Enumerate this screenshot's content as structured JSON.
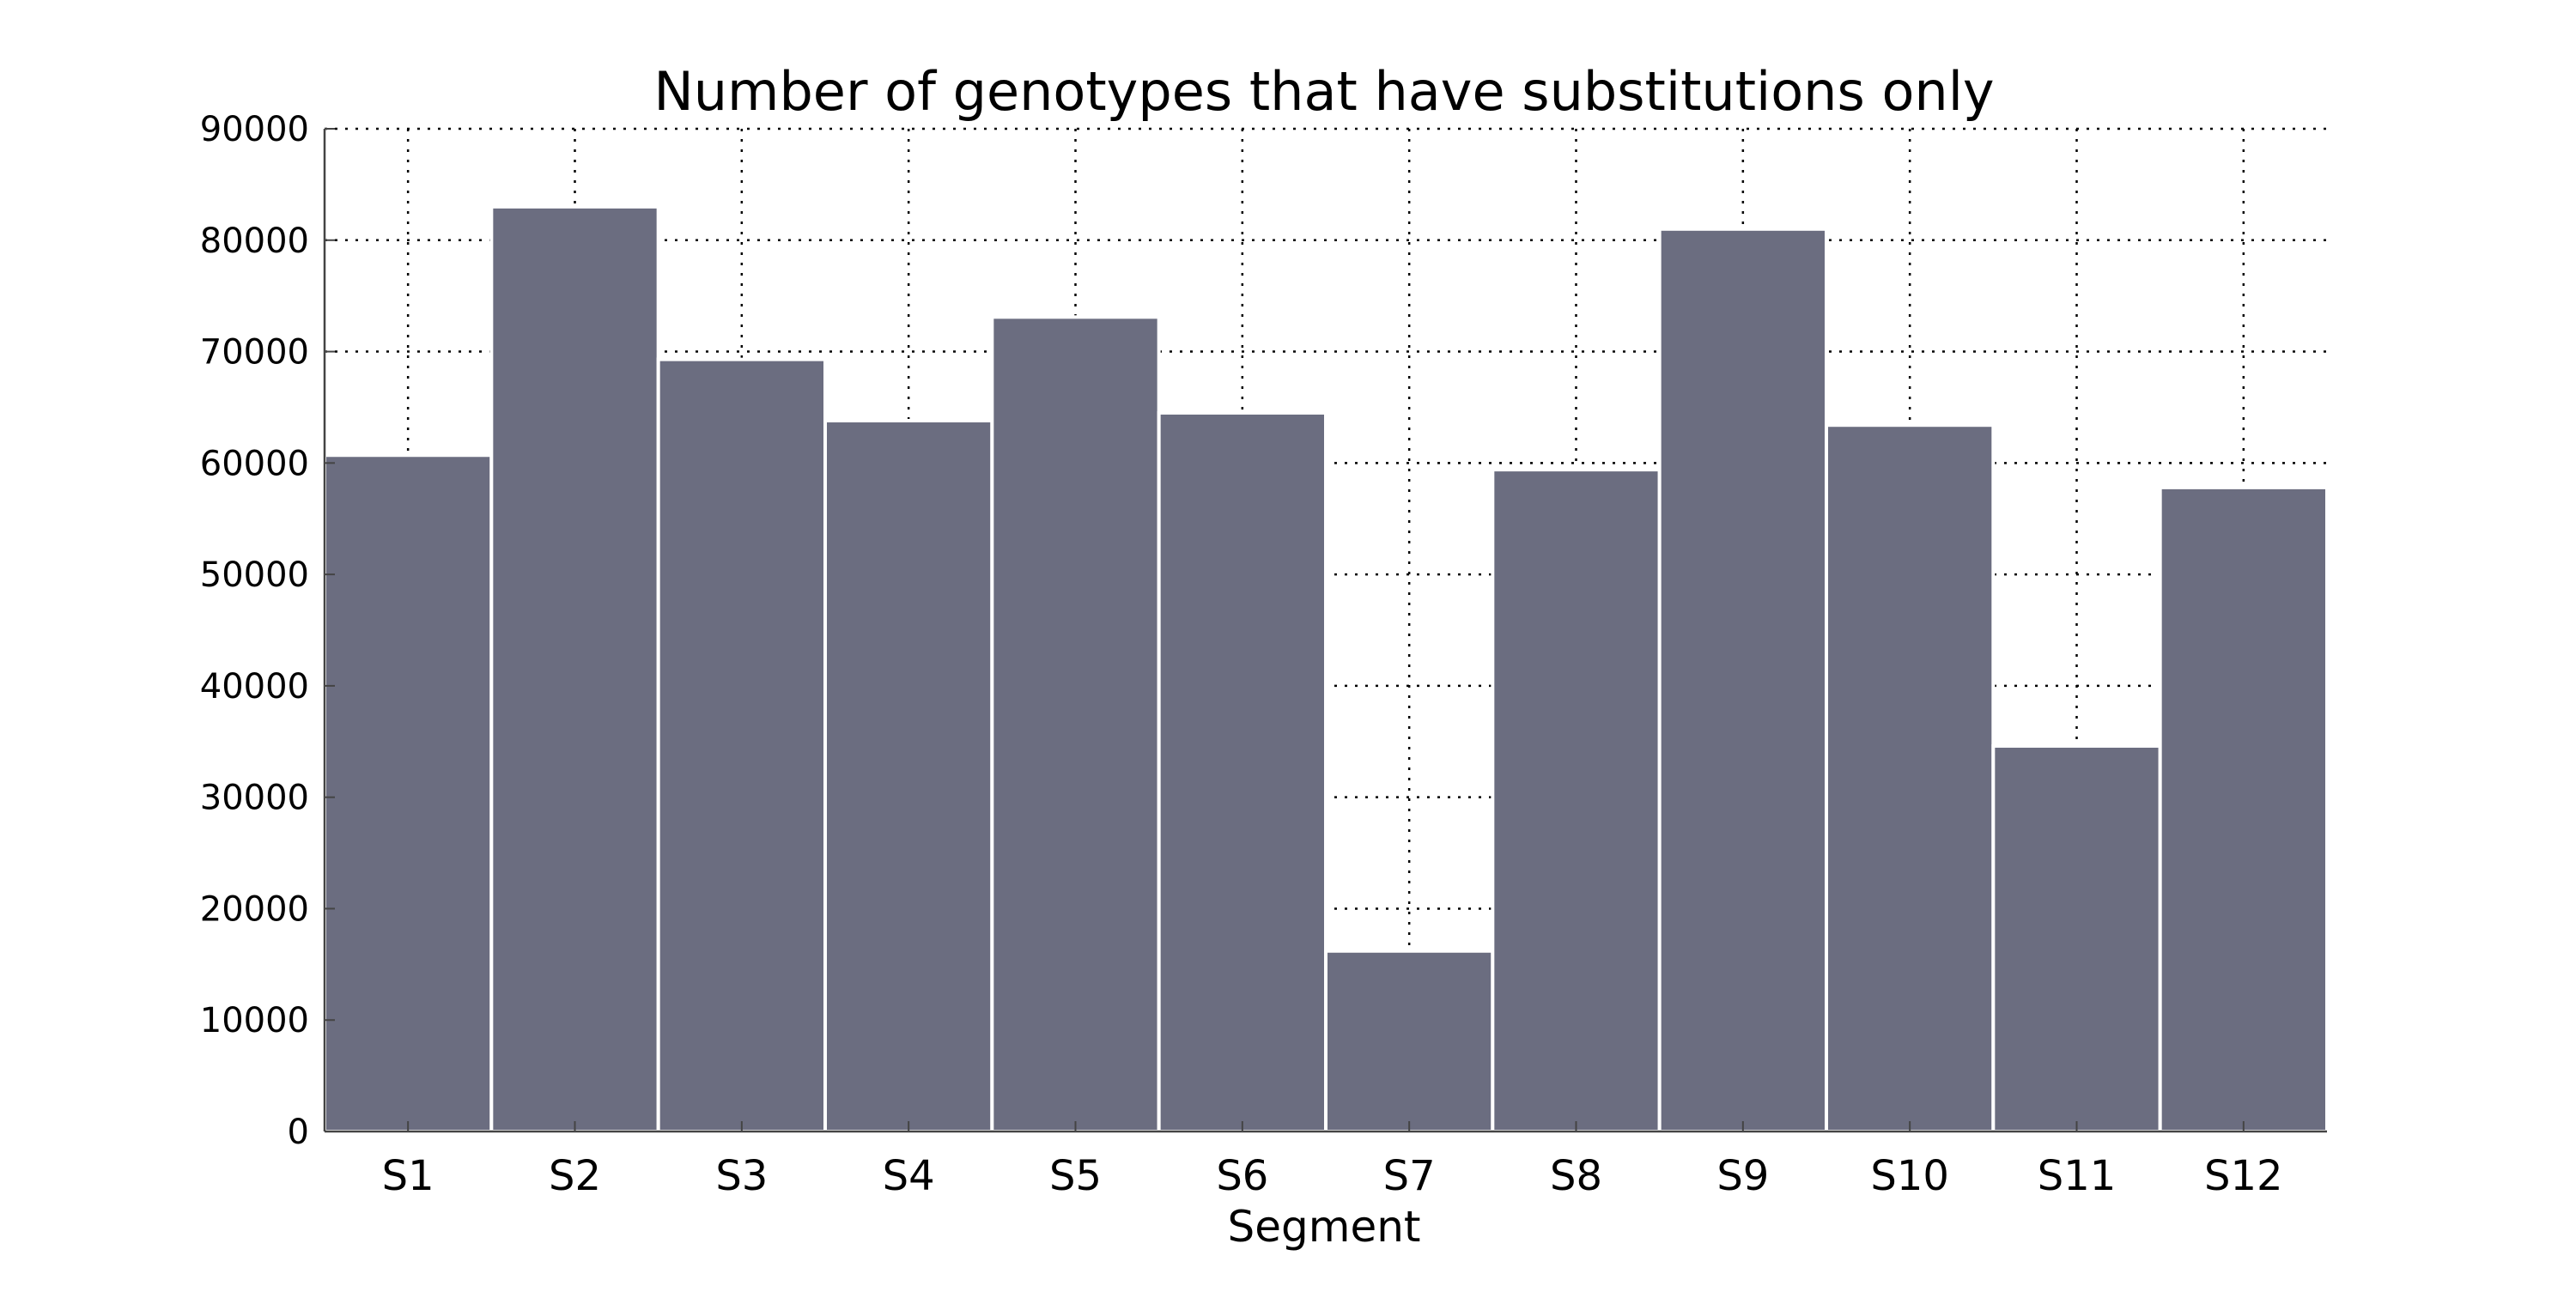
{
  "chart_data": {
    "type": "bar",
    "title": "Number of genotypes that have substitutions only",
    "xlabel": "Segment",
    "ylabel": "",
    "categories": [
      "S1",
      "S2",
      "S3",
      "S4",
      "S5",
      "S6",
      "S7",
      "S8",
      "S9",
      "S10",
      "S11",
      "S12"
    ],
    "values": [
      60700,
      83000,
      69300,
      63800,
      73100,
      64500,
      16200,
      59400,
      81000,
      63400,
      34600,
      57800
    ],
    "ylim": [
      0,
      90000
    ],
    "yticks": [
      "0",
      "10000",
      "20000",
      "30000",
      "40000",
      "50000",
      "60000",
      "70000",
      "80000",
      "90000"
    ],
    "grid": true,
    "legend": "none",
    "colors": {
      "bar": "#6b6d80",
      "bar_edge": "#ffffff",
      "grid": "#000000",
      "axis": "#444444"
    }
  }
}
